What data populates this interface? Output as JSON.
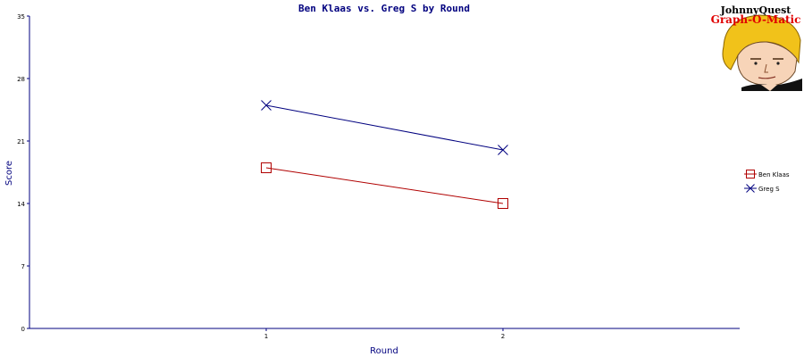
{
  "logo": {
    "line1": "JohnnyQuest",
    "line2": "Graph-O-Matic"
  },
  "colors": {
    "axis": "#00007f",
    "series_0": "#b00000",
    "series_1": "#00007f"
  },
  "chart_data": {
    "type": "line",
    "title": "Ben Klaas vs. Greg S by Round",
    "xlabel": "Round",
    "ylabel": "Score",
    "x": [
      1,
      2
    ],
    "xlim": [
      0,
      3
    ],
    "ylim": [
      0,
      35
    ],
    "yticks": [
      0,
      7,
      14,
      21,
      28,
      35
    ],
    "xticks": [
      1,
      2
    ],
    "grid": false,
    "legend_position": "right",
    "series": [
      {
        "name": "Ben Klaas",
        "marker": "square",
        "color": "#b00000",
        "values": [
          18,
          14
        ]
      },
      {
        "name": "Greg S",
        "marker": "x",
        "color": "#00007f",
        "values": [
          25,
          20
        ]
      }
    ]
  }
}
